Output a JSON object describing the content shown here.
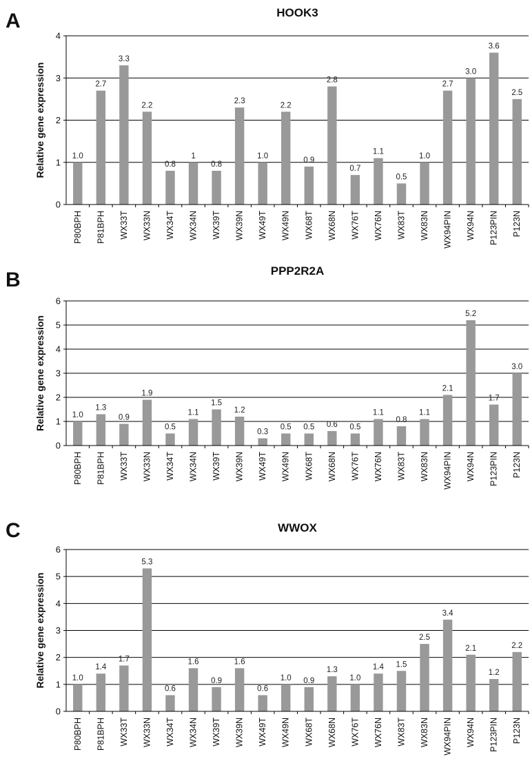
{
  "chart_data": [
    {
      "type": "bar",
      "panel": "A",
      "title": "HOOK3",
      "ylabel": "Relative gene expression",
      "xlabel": "",
      "ylim": [
        0,
        4
      ],
      "yticks": [
        0,
        1,
        2,
        3,
        4
      ],
      "grid": true,
      "color": "#999999",
      "categories": [
        "P80BPH",
        "P81BPH",
        "WX33T",
        "WX33N",
        "WX34T",
        "WX34N",
        "WX39T",
        "WX39N",
        "WX49T",
        "WX49N",
        "WX68T",
        "WX68N",
        "WX76T",
        "WX76N",
        "WX83T",
        "WX83N",
        "WX94PIN",
        "WX94N",
        "P123PIN",
        "P123N"
      ],
      "values": [
        1.0,
        2.7,
        3.3,
        2.2,
        0.8,
        1,
        0.8,
        2.3,
        1.0,
        2.2,
        0.9,
        2.8,
        0.7,
        1.1,
        0.5,
        1.0,
        2.7,
        3.0,
        3.6,
        2.5
      ],
      "data_labels": [
        "1.0",
        "2.7",
        "3.3",
        "2.2",
        "0.8",
        "1",
        "0.8",
        "2.3",
        "1.0",
        "2.2",
        "0.9",
        "2.8",
        "0.7",
        "1.1",
        "0.5",
        "1.0",
        "2.7",
        "3.0",
        "3.6",
        "2.5"
      ]
    },
    {
      "type": "bar",
      "panel": "B",
      "title": "PPP2R2A",
      "ylabel": "Relative gene expression",
      "xlabel": "",
      "ylim": [
        0,
        6
      ],
      "yticks": [
        0,
        1,
        2,
        3,
        4,
        5,
        6
      ],
      "grid": true,
      "color": "#999999",
      "categories": [
        "P80BPH",
        "P81BPH",
        "WX33T",
        "WX33N",
        "WX34T",
        "WX34N",
        "WX39T",
        "WX39N",
        "WX49T",
        "WX49N",
        "WX68T",
        "WX68N",
        "WX76T",
        "WX76N",
        "WX83T",
        "WX83N",
        "WX94PIN",
        "WX94N",
        "P123PIN",
        "P123N"
      ],
      "values": [
        1.0,
        1.3,
        0.9,
        1.9,
        0.5,
        1.1,
        1.5,
        1.2,
        0.3,
        0.5,
        0.5,
        0.6,
        0.5,
        1.1,
        0.8,
        1.1,
        2.1,
        5.2,
        1.7,
        3.0
      ],
      "data_labels": [
        "1.0",
        "1.3",
        "0.9",
        "1.9",
        "0.5",
        "1.1",
        "1.5",
        "1.2",
        "0.3",
        "0.5",
        "0.5",
        "0.6",
        "0.5",
        "1.1",
        "0.8",
        "1.1",
        "2.1",
        "5.2",
        "1.7",
        "3.0"
      ]
    },
    {
      "type": "bar",
      "panel": "C",
      "title": "WWOX",
      "ylabel": "Relative gene expression",
      "xlabel": "",
      "ylim": [
        0,
        6
      ],
      "yticks": [
        0,
        1,
        2,
        3,
        4,
        5,
        6
      ],
      "grid": true,
      "color": "#999999",
      "categories": [
        "P80BPH",
        "P81BPH",
        "WX33T",
        "WX33N",
        "WX34T",
        "WX34N",
        "WX39T",
        "WX39N",
        "WX49T",
        "WX49N",
        "WX68T",
        "WX68N",
        "WX76T",
        "WX76N",
        "WX83T",
        "WX83N",
        "WX94PIN",
        "WX94N",
        "P123PIN",
        "P123N"
      ],
      "values": [
        1.0,
        1.4,
        1.7,
        5.3,
        0.6,
        1.6,
        0.9,
        1.6,
        0.6,
        1.0,
        0.9,
        1.3,
        1.0,
        1.4,
        1.5,
        2.5,
        3.4,
        2.1,
        1.2,
        2.2
      ],
      "data_labels": [
        "1.0",
        "1.4",
        "1.7",
        "5.3",
        "0.6",
        "1.6",
        "0.9",
        "1.6",
        "0.6",
        "1.0",
        "0.9",
        "1.3",
        "1.0",
        "1.4",
        "1.5",
        "2.5",
        "3.4",
        "2.1",
        "1.2",
        "2.2"
      ]
    }
  ]
}
